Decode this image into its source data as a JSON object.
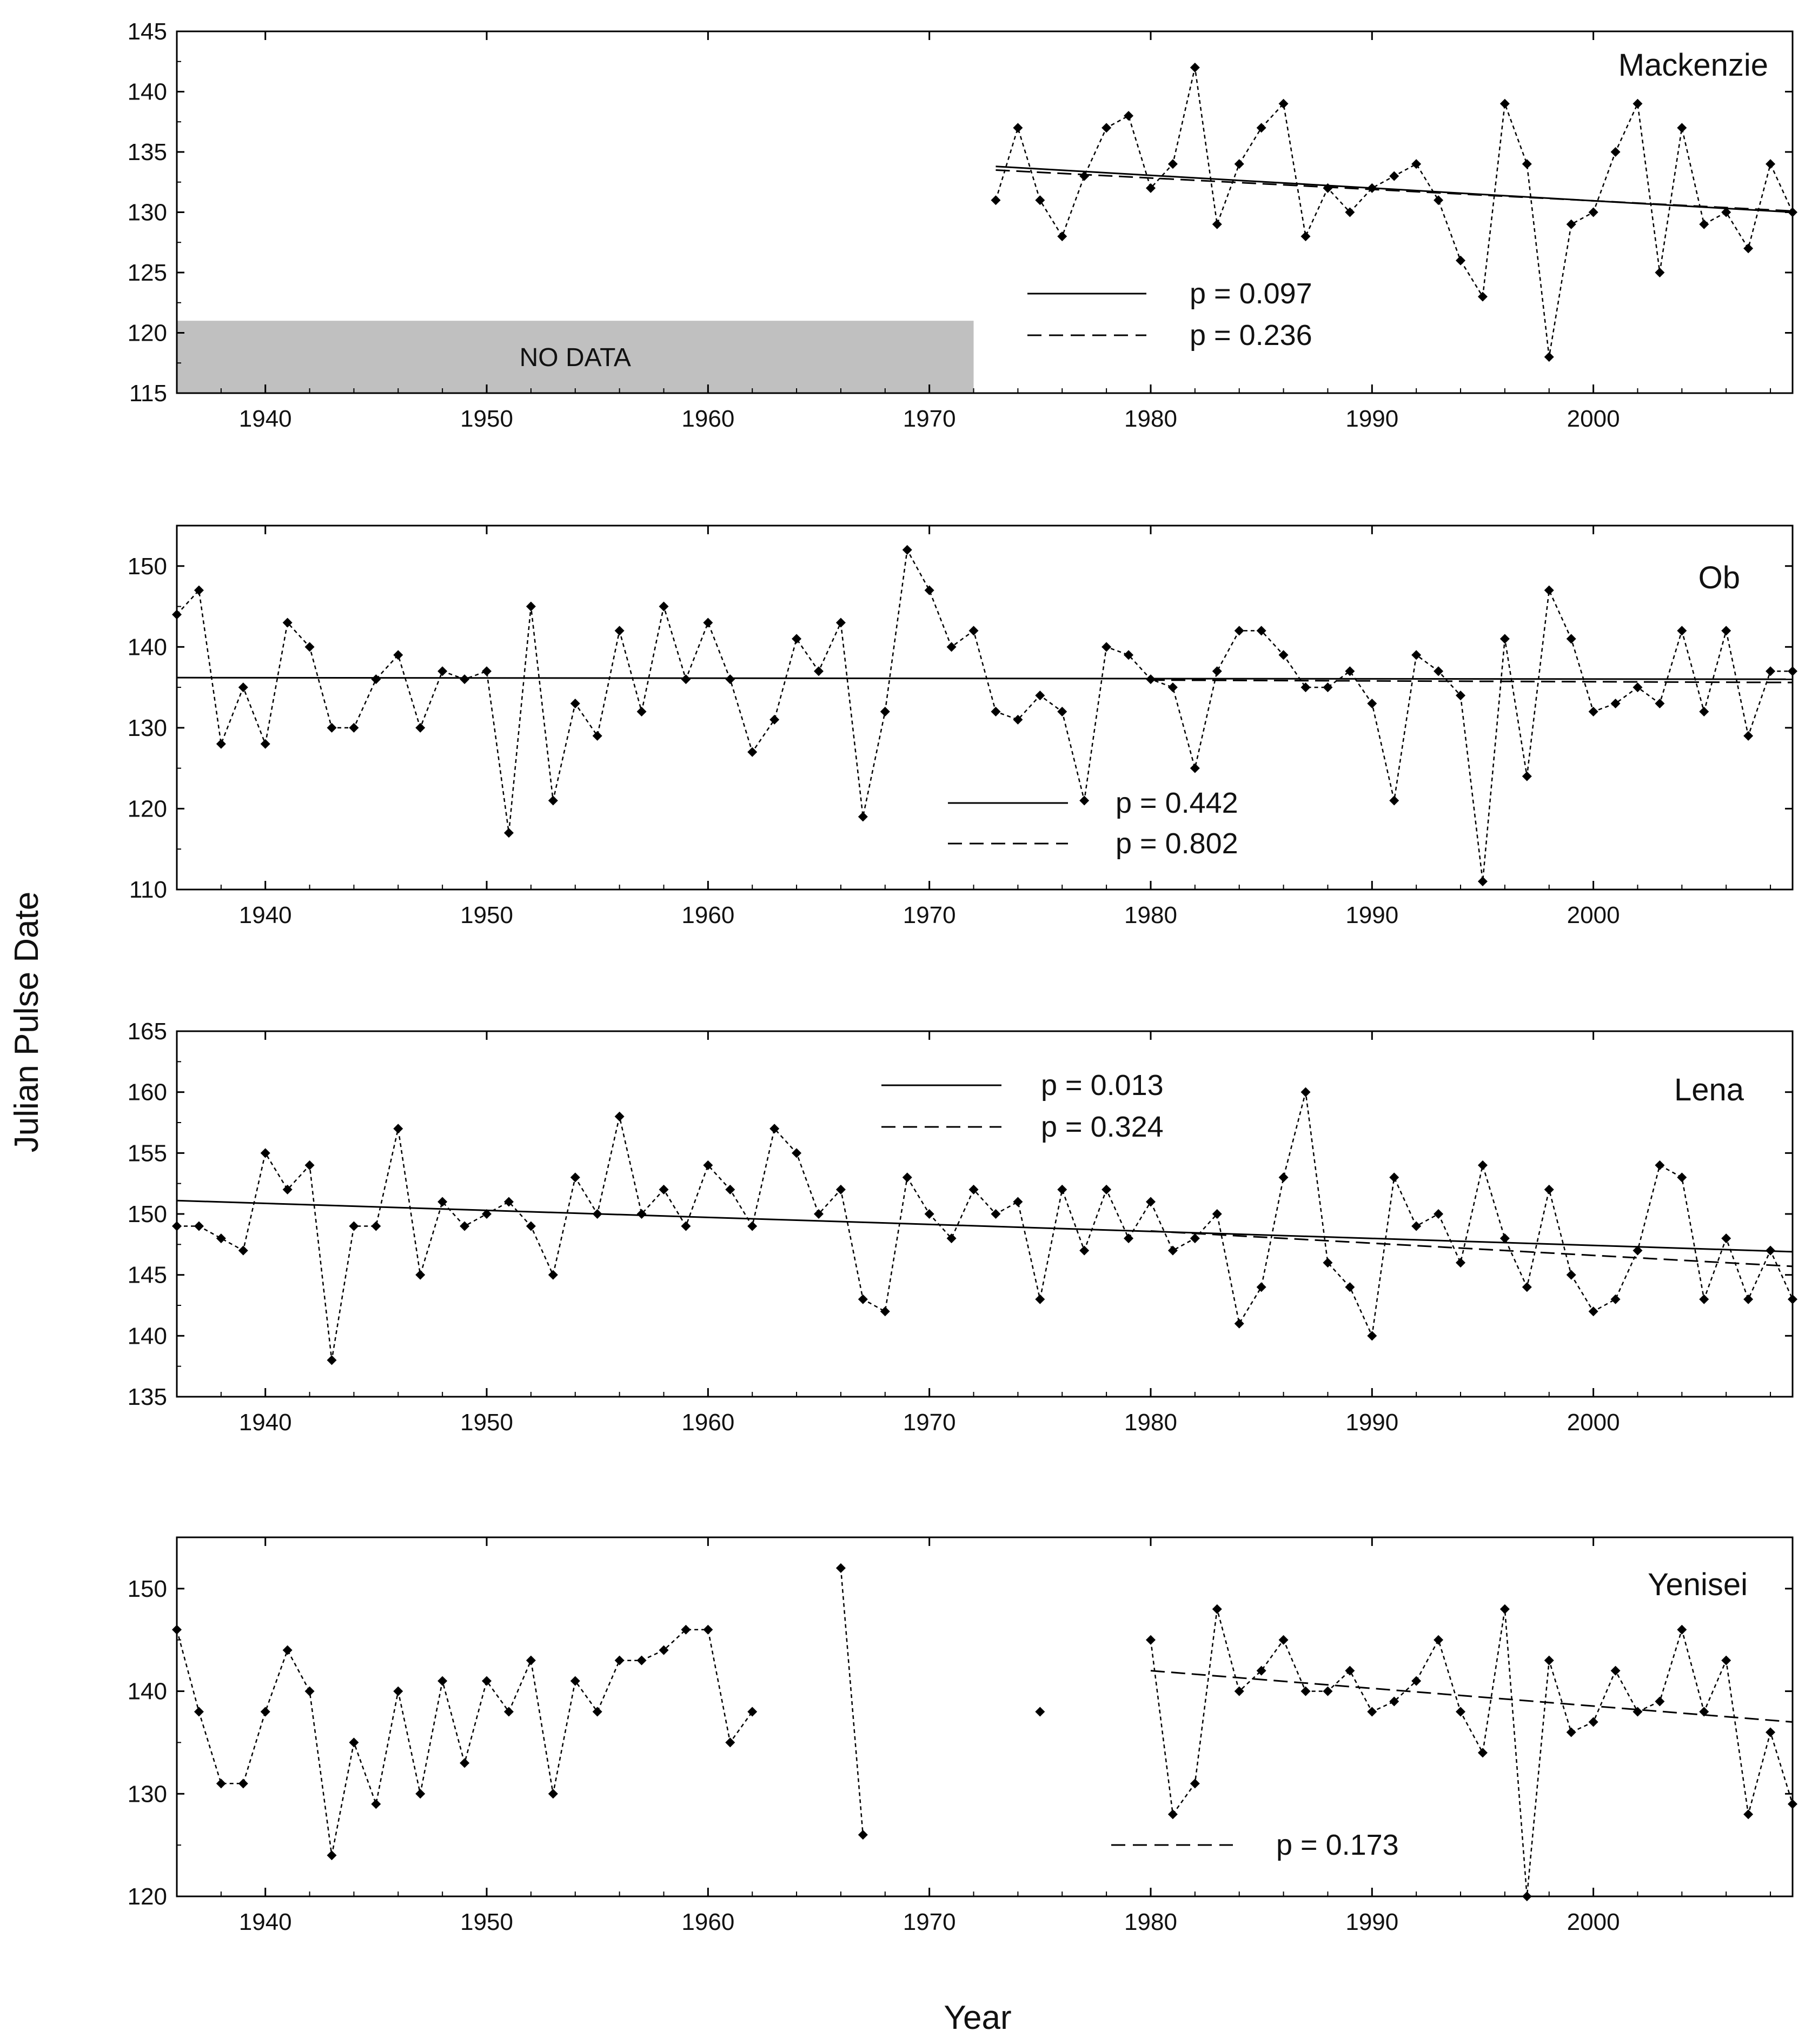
{
  "chart_data": [
    {
      "type": "line",
      "title": "Mackenzie",
      "xlim": [
        1936,
        2009
      ],
      "ylim": [
        115,
        145
      ],
      "yticks": [
        115,
        120,
        125,
        130,
        135,
        140,
        145
      ],
      "xticks": [
        1940,
        1950,
        1960,
        1970,
        1980,
        1990,
        2000
      ],
      "no_data": {
        "label": "NO DATA",
        "x_range": [
          1936,
          1972
        ],
        "y_range": [
          115,
          121
        ],
        "color": "#c0c0c0"
      },
      "series": [
        {
          "name": "Julian pulse date",
          "style": "dotted-markers",
          "x": [
            1973,
            1974,
            1975,
            1976,
            1977,
            1978,
            1979,
            1980,
            1981,
            1982,
            1983,
            1984,
            1985,
            1986,
            1987,
            1988,
            1989,
            1990,
            1991,
            1992,
            1993,
            1994,
            1995,
            1996,
            1997,
            1998,
            1999,
            2000,
            2001,
            2002,
            2003,
            2004,
            2005,
            2006,
            2007,
            2008,
            2009
          ],
          "y": [
            131,
            137,
            131,
            128,
            133,
            137,
            138,
            132,
            134,
            142,
            129,
            134,
            137,
            139,
            128,
            132,
            130,
            132,
            133,
            134,
            131,
            126,
            123,
            139,
            134,
            118,
            129,
            130,
            135,
            139,
            125,
            137,
            129,
            130,
            127,
            134,
            130
          ]
        }
      ],
      "trends": [
        {
          "style": "solid",
          "x": [
            1973,
            2009
          ],
          "y": [
            133.8,
            130.0
          ]
        },
        {
          "style": "dashed",
          "x": [
            1973,
            2009
          ],
          "y": [
            133.5,
            130.1
          ]
        }
      ],
      "legend": [
        {
          "style": "solid",
          "label": "p = 0.097"
        },
        {
          "style": "dashed",
          "label": "p = 0.236"
        }
      ]
    },
    {
      "type": "line",
      "title": "Ob",
      "xlim": [
        1936,
        2009
      ],
      "ylim": [
        110,
        155
      ],
      "yticks": [
        110,
        120,
        130,
        140,
        150
      ],
      "xticks": [
        1940,
        1950,
        1960,
        1970,
        1980,
        1990,
        2000
      ],
      "series": [
        {
          "name": "Julian pulse date",
          "style": "dotted-markers",
          "x": [
            1936,
            1937,
            1938,
            1939,
            1940,
            1941,
            1942,
            1943,
            1944,
            1945,
            1946,
            1947,
            1948,
            1949,
            1950,
            1951,
            1952,
            1953,
            1954,
            1955,
            1956,
            1957,
            1958,
            1959,
            1960,
            1961,
            1962,
            1963,
            1964,
            1965,
            1966,
            1967,
            1968,
            1969,
            1970,
            1971,
            1972,
            1973,
            1974,
            1975,
            1976,
            1977,
            1978,
            1979,
            1980,
            1981,
            1982,
            1983,
            1984,
            1985,
            1986,
            1987,
            1988,
            1989,
            1990,
            1991,
            1992,
            1993,
            1994,
            1995,
            1996,
            1997,
            1998,
            1999,
            2000,
            2001,
            2002,
            2003,
            2004,
            2005,
            2006,
            2007,
            2008,
            2009
          ],
          "y": [
            144,
            147,
            128,
            135,
            128,
            143,
            140,
            130,
            130,
            136,
            139,
            130,
            137,
            136,
            137,
            117,
            145,
            121,
            133,
            129,
            142,
            132,
            145,
            136,
            143,
            136,
            127,
            131,
            141,
            137,
            143,
            119,
            132,
            152,
            147,
            140,
            142,
            132,
            131,
            134,
            132,
            121,
            140,
            139,
            136,
            135,
            125,
            137,
            142,
            142,
            139,
            135,
            135,
            137,
            133,
            121,
            139,
            137,
            134,
            111,
            141,
            124,
            147,
            141,
            132,
            133,
            135,
            133,
            142,
            132,
            142,
            129,
            137,
            137
          ]
        }
      ],
      "trends": [
        {
          "style": "solid",
          "x": [
            1936,
            2009
          ],
          "y": [
            136.2,
            136.0
          ]
        },
        {
          "style": "dashed",
          "x": [
            1980,
            2009
          ],
          "y": [
            135.9,
            135.6
          ]
        }
      ],
      "legend": [
        {
          "style": "solid",
          "label": "p = 0.442"
        },
        {
          "style": "dashed",
          "label": "p = 0.802"
        }
      ]
    },
    {
      "type": "line",
      "title": "Lena",
      "xlim": [
        1936,
        2009
      ],
      "ylim": [
        135,
        165
      ],
      "yticks": [
        135,
        140,
        145,
        150,
        155,
        160,
        165
      ],
      "xticks": [
        1940,
        1950,
        1960,
        1970,
        1980,
        1990,
        2000
      ],
      "series": [
        {
          "name": "Julian pulse date",
          "style": "dotted-markers",
          "x": [
            1936,
            1937,
            1938,
            1939,
            1940,
            1941,
            1942,
            1943,
            1944,
            1945,
            1946,
            1947,
            1948,
            1949,
            1950,
            1951,
            1952,
            1953,
            1954,
            1955,
            1956,
            1957,
            1958,
            1959,
            1960,
            1961,
            1962,
            1963,
            1964,
            1965,
            1966,
            1967,
            1968,
            1969,
            1970,
            1971,
            1972,
            1973,
            1974,
            1975,
            1976,
            1977,
            1978,
            1979,
            1980,
            1981,
            1982,
            1983,
            1984,
            1985,
            1986,
            1987,
            1988,
            1989,
            1990,
            1991,
            1992,
            1993,
            1994,
            1995,
            1996,
            1997,
            1998,
            1999,
            2000,
            2001,
            2002,
            2003,
            2004,
            2005,
            2006,
            2007,
            2008,
            2009
          ],
          "y": [
            149,
            149,
            148,
            147,
            155,
            152,
            154,
            138,
            149,
            149,
            157,
            145,
            151,
            149,
            150,
            151,
            149,
            145,
            153,
            150,
            158,
            150,
            152,
            149,
            154,
            152,
            149,
            157,
            155,
            150,
            152,
            143,
            142,
            153,
            150,
            148,
            152,
            150,
            151,
            143,
            152,
            147,
            152,
            148,
            151,
            147,
            148,
            150,
            141,
            144,
            153,
            160,
            146,
            144,
            140,
            153,
            149,
            150,
            146,
            154,
            148,
            144,
            152,
            145,
            142,
            143,
            147,
            154,
            153,
            143,
            148,
            143,
            147,
            143
          ]
        }
      ],
      "trends": [
        {
          "style": "solid",
          "x": [
            1936,
            2009
          ],
          "y": [
            151.1,
            146.9
          ]
        },
        {
          "style": "dashed",
          "x": [
            1980,
            2009
          ],
          "y": [
            148.6,
            145.7
          ]
        }
      ],
      "legend": [
        {
          "style": "solid",
          "label": "p = 0.013"
        },
        {
          "style": "dashed",
          "label": "p = 0.324"
        }
      ]
    },
    {
      "type": "line",
      "title": "Yenisei",
      "xlim": [
        1936,
        2009
      ],
      "ylim": [
        120,
        155
      ],
      "yticks": [
        120,
        130,
        140,
        150
      ],
      "xticks": [
        1940,
        1950,
        1960,
        1970,
        1980,
        1990,
        2000
      ],
      "series": [
        {
          "name": "Julian pulse date 1936-1962",
          "style": "dotted-markers",
          "x": [
            1936,
            1937,
            1938,
            1939,
            1940,
            1941,
            1942,
            1943,
            1944,
            1945,
            1946,
            1947,
            1948,
            1949,
            1950,
            1951,
            1952,
            1953,
            1954,
            1955,
            1956,
            1957,
            1958,
            1959,
            1960,
            1961,
            1962
          ],
          "y": [
            146,
            138,
            131,
            131,
            138,
            144,
            140,
            124,
            135,
            129,
            140,
            130,
            141,
            133,
            141,
            138,
            143,
            130,
            141,
            138,
            143,
            143,
            144,
            146,
            146,
            135,
            138
          ]
        },
        {
          "name": "Julian pulse date 1966-1967",
          "style": "dotted-markers",
          "x": [
            1966,
            1967
          ],
          "y": [
            152,
            126
          ]
        },
        {
          "name": "Julian pulse date 1975",
          "style": "dotted-markers",
          "x": [
            1975
          ],
          "y": [
            138
          ]
        },
        {
          "name": "Julian pulse date 1980-2009",
          "style": "dotted-markers",
          "x": [
            1980,
            1981,
            1982,
            1983,
            1984,
            1985,
            1986,
            1987,
            1988,
            1989,
            1990,
            1991,
            1992,
            1993,
            1994,
            1995,
            1996,
            1997,
            1998,
            1999,
            2000,
            2001,
            2002,
            2003,
            2004,
            2005,
            2006,
            2007,
            2008,
            2009
          ],
          "y": [
            145,
            128,
            131,
            148,
            140,
            142,
            145,
            140,
            140,
            142,
            138,
            139,
            141,
            145,
            138,
            134,
            148,
            120,
            143,
            136,
            137,
            142,
            138,
            139,
            146,
            138,
            143,
            128,
            136,
            129
          ]
        }
      ],
      "trends": [
        {
          "style": "dashed",
          "x": [
            1980,
            2009
          ],
          "y": [
            142.0,
            137.0
          ]
        }
      ],
      "legend": [
        {
          "style": "dashed",
          "label": "p = 0.173"
        }
      ]
    }
  ],
  "axes": {
    "ylabel": "Julian Pulse Date",
    "xlabel": "Year"
  }
}
